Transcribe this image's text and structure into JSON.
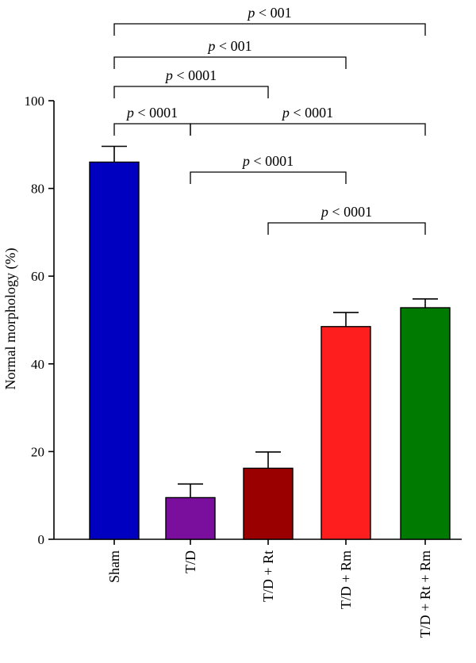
{
  "chart_data": {
    "type": "bar",
    "ylabel": "Normal morphology (%)",
    "xlabel": "",
    "ylim": [
      0,
      100
    ],
    "yticks": [
      0,
      20,
      40,
      60,
      80,
      100
    ],
    "categories": [
      "Sham",
      "T/D",
      "T/D + Rt",
      "T/D + Rm",
      "T/D + Rt + Rm"
    ],
    "values": [
      86,
      9.5,
      16.2,
      48.5,
      52.8
    ],
    "errors": [
      3.6,
      3.1,
      3.7,
      3.2,
      2.0
    ],
    "colors": [
      "#0000c0",
      "#7a0f9e",
      "#9b0000",
      "#ff1e1e",
      "#007a00"
    ],
    "grid": false,
    "significance": [
      {
        "from": 0,
        "to": 4,
        "label_p": "p",
        "label_rest": " < 001"
      },
      {
        "from": 0,
        "to": 3,
        "label_p": "p",
        "label_rest": " < 001"
      },
      {
        "from": 0,
        "to": 2,
        "label_p": "p",
        "label_rest": " < 0001"
      },
      {
        "from": 0,
        "to": 1,
        "label_p": "p",
        "label_rest": " < 0001"
      },
      {
        "from": 1,
        "to": 4,
        "label_p": "p",
        "label_rest": " < 0001"
      },
      {
        "from": 1,
        "to": 3,
        "label_p": "p",
        "label_rest": " < 0001"
      },
      {
        "from": 2,
        "to": 4,
        "label_p": "p",
        "label_rest": " < 0001"
      }
    ]
  }
}
